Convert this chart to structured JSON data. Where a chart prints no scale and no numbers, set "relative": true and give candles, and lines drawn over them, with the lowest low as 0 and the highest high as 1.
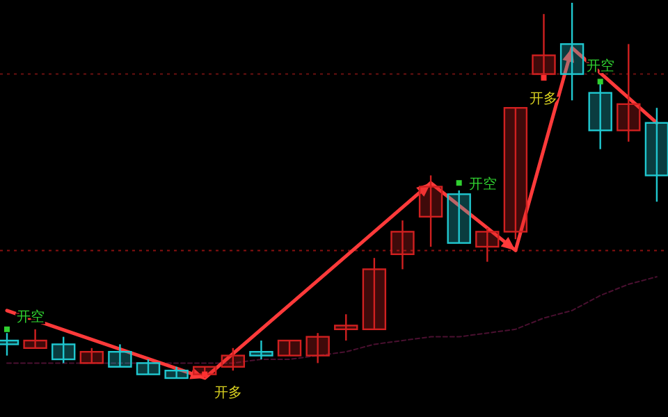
{
  "chart_data": {
    "type": "candlestick",
    "relative": true,
    "categories": [
      null,
      null,
      null,
      null,
      null,
      null,
      null,
      null,
      null,
      null,
      null,
      null,
      null,
      null,
      null,
      null,
      null,
      null,
      null,
      null,
      null,
      null,
      null,
      null
    ],
    "ohlc": [
      [
        0.1,
        0.12,
        0.06,
        0.09
      ],
      [
        0.08,
        0.13,
        0.08,
        0.1
      ],
      [
        0.09,
        0.11,
        0.04,
        0.05
      ],
      [
        0.04,
        0.08,
        0.04,
        0.07
      ],
      [
        0.07,
        0.09,
        0.03,
        0.03
      ],
      [
        0.04,
        0.05,
        0.01,
        0.01
      ],
      [
        0.02,
        0.03,
        0.0,
        0.0
      ],
      [
        0.01,
        0.03,
        0.0,
        0.03
      ],
      [
        0.03,
        0.08,
        0.02,
        0.06
      ],
      [
        0.07,
        0.1,
        0.05,
        0.06
      ],
      [
        0.06,
        0.1,
        0.06,
        0.1
      ],
      [
        0.06,
        0.12,
        0.04,
        0.11
      ],
      [
        0.13,
        0.17,
        0.1,
        0.14
      ],
      [
        0.13,
        0.32,
        0.13,
        0.29
      ],
      [
        0.33,
        0.42,
        0.29,
        0.39
      ],
      [
        0.43,
        0.54,
        0.35,
        0.51
      ],
      [
        0.49,
        0.5,
        0.36,
        0.36
      ],
      [
        0.35,
        0.4,
        0.31,
        0.39
      ],
      [
        0.39,
        0.72,
        0.37,
        0.72
      ],
      [
        0.81,
        0.97,
        0.8,
        0.86
      ],
      [
        0.89,
        1.0,
        0.74,
        0.81
      ],
      [
        0.76,
        0.79,
        0.61,
        0.66
      ],
      [
        0.66,
        0.89,
        0.63,
        0.73
      ],
      [
        0.68,
        0.72,
        0.47,
        0.54
      ]
    ],
    "colors": [
      "#20c8d0",
      "#d02020",
      "#20c8d0",
      "#d02020",
      "#20c8d0",
      "#20c8d0",
      "#20c8d0",
      "#d02020",
      "#d02020",
      "#20c8d0",
      "#d02020",
      "#d02020",
      "#d02020",
      "#d02020",
      "#d02020",
      "#d02020",
      "#20c8d0",
      "#d02020",
      "#d02020",
      "#d02020",
      "#20c8d0",
      "#20c8d0",
      "#d02020",
      "#20c8d0"
    ],
    "series": [
      {
        "type": "line",
        "color": "#4a1030",
        "line_style": "dashed",
        "values": [
          0.04,
          0.04,
          0.04,
          0.04,
          0.04,
          0.04,
          0.04,
          0.04,
          0.04,
          0.05,
          0.05,
          0.06,
          0.07,
          0.09,
          0.1,
          0.11,
          0.11,
          0.12,
          0.13,
          0.16,
          0.18,
          0.22,
          0.25,
          0.27
        ]
      },
      {
        "type": "line",
        "color": "#ff3a3a",
        "line_style": "solid",
        "values": [
          0.18,
          null,
          null,
          null,
          null,
          null,
          null,
          0.0,
          null,
          null,
          null,
          null,
          null,
          null,
          null,
          0.52,
          null,
          null,
          0.34,
          null,
          0.88,
          null,
          null,
          0.68
        ]
      },
      {
        "type": "scatter",
        "marker": "square",
        "colors": [
          "#30d030",
          null,
          null,
          null,
          null,
          null,
          null,
          "#ff3030",
          null,
          null,
          null,
          null,
          null,
          null,
          null,
          null,
          "#30d030",
          null,
          null,
          "#ff3030",
          null,
          "#30d030",
          null,
          null
        ],
        "values": [
          0.13,
          null,
          null,
          null,
          null,
          null,
          null,
          0.01,
          null,
          null,
          null,
          null,
          null,
          null,
          null,
          null,
          0.52,
          null,
          null,
          0.8,
          null,
          0.79,
          null,
          null
        ]
      }
    ],
    "annotations": [
      "开空",
      "开多",
      "开空",
      "开多",
      "开空"
    ],
    "ref_lines": [
      {
        "axis": "y",
        "value": 0.81,
        "color": "#6a1010",
        "line_style": "dotted"
      },
      {
        "axis": "y",
        "value": 0.34,
        "color": "#8a1010",
        "line_style": "dotted"
      }
    ]
  }
}
